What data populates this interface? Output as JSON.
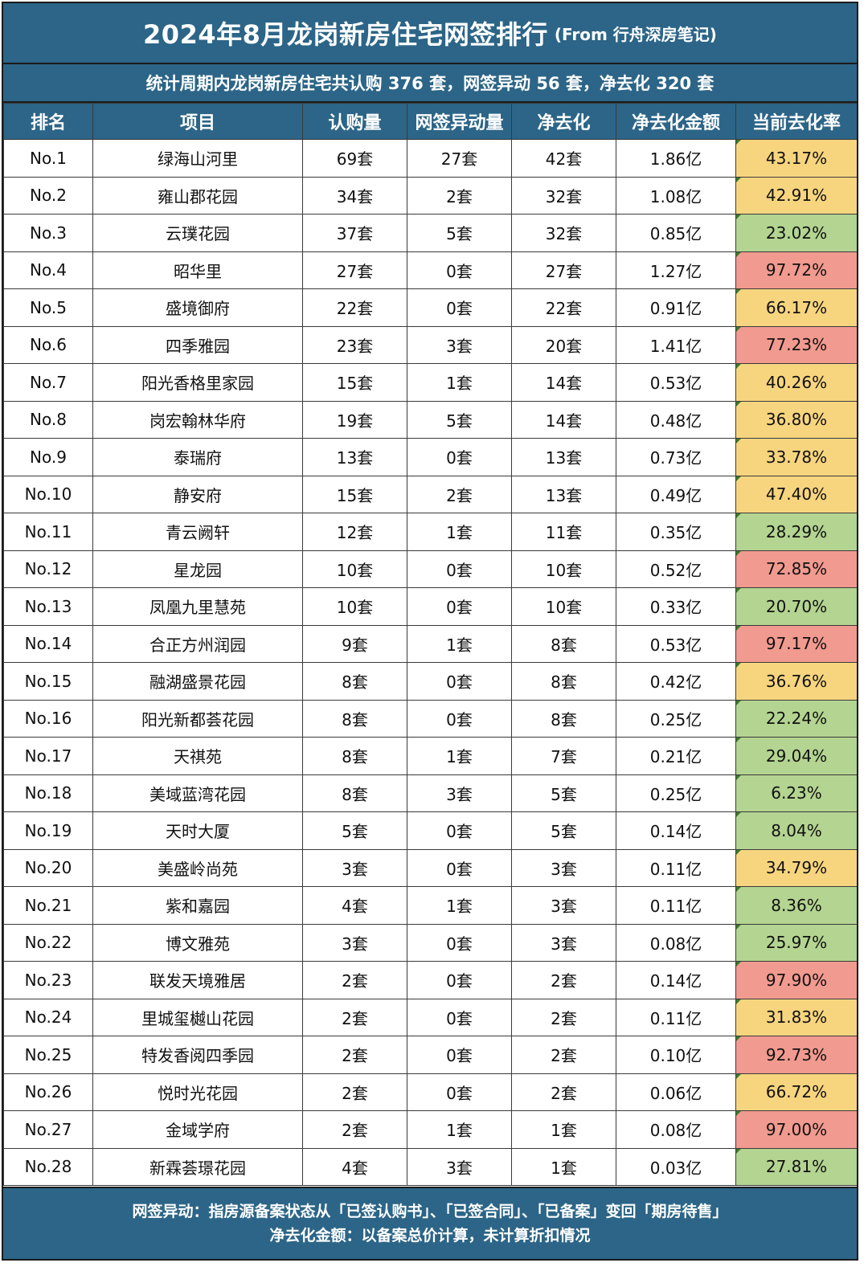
{
  "title": {
    "main": "2024年8月龙岗新房住宅网签排行",
    "source": "(From 行舟深房笔记)"
  },
  "summary": "统计周期内龙岗新房住宅共认购 376 套，网签异动 56 套，净去化 320 套",
  "headers": [
    "排名",
    "项目",
    "认购量",
    "网签异动量",
    "净去化",
    "净去化金额",
    "当前去化率"
  ],
  "colors": {
    "header_bg": "#2c6587",
    "rate_high": "#f19a8f",
    "rate_mid": "#f7d57f",
    "rate_low": "#b4d491"
  },
  "rows": [
    {
      "rank": "No.1",
      "project": "绿海山河里",
      "subscribed": "69套",
      "change": "27套",
      "net": "42套",
      "amount": "1.86亿",
      "rate": "43.17%",
      "level": "mid"
    },
    {
      "rank": "No.2",
      "project": "雍山郡花园",
      "subscribed": "34套",
      "change": "2套",
      "net": "32套",
      "amount": "1.08亿",
      "rate": "42.91%",
      "level": "mid"
    },
    {
      "rank": "No.3",
      "project": "云璞花园",
      "subscribed": "37套",
      "change": "5套",
      "net": "32套",
      "amount": "0.85亿",
      "rate": "23.02%",
      "level": "low"
    },
    {
      "rank": "No.4",
      "project": "昭华里",
      "subscribed": "27套",
      "change": "0套",
      "net": "27套",
      "amount": "1.27亿",
      "rate": "97.72%",
      "level": "high"
    },
    {
      "rank": "No.5",
      "project": "盛境御府",
      "subscribed": "22套",
      "change": "0套",
      "net": "22套",
      "amount": "0.91亿",
      "rate": "66.17%",
      "level": "mid"
    },
    {
      "rank": "No.6",
      "project": "四季雅园",
      "subscribed": "23套",
      "change": "3套",
      "net": "20套",
      "amount": "1.41亿",
      "rate": "77.23%",
      "level": "high"
    },
    {
      "rank": "No.7",
      "project": "阳光香格里家园",
      "subscribed": "15套",
      "change": "1套",
      "net": "14套",
      "amount": "0.53亿",
      "rate": "40.26%",
      "level": "mid"
    },
    {
      "rank": "No.8",
      "project": "岗宏翰林华府",
      "subscribed": "19套",
      "change": "5套",
      "net": "14套",
      "amount": "0.48亿",
      "rate": "36.80%",
      "level": "mid"
    },
    {
      "rank": "No.9",
      "project": "泰瑞府",
      "subscribed": "13套",
      "change": "0套",
      "net": "13套",
      "amount": "0.73亿",
      "rate": "33.78%",
      "level": "mid"
    },
    {
      "rank": "No.10",
      "project": "静安府",
      "subscribed": "15套",
      "change": "2套",
      "net": "13套",
      "amount": "0.49亿",
      "rate": "47.40%",
      "level": "mid"
    },
    {
      "rank": "No.11",
      "project": "青云阙轩",
      "subscribed": "12套",
      "change": "1套",
      "net": "11套",
      "amount": "0.35亿",
      "rate": "28.29%",
      "level": "low"
    },
    {
      "rank": "No.12",
      "project": "星龙园",
      "subscribed": "10套",
      "change": "0套",
      "net": "10套",
      "amount": "0.52亿",
      "rate": "72.85%",
      "level": "high"
    },
    {
      "rank": "No.13",
      "project": "凤凰九里慧苑",
      "subscribed": "10套",
      "change": "0套",
      "net": "10套",
      "amount": "0.33亿",
      "rate": "20.70%",
      "level": "low"
    },
    {
      "rank": "No.14",
      "project": "合正方州润园",
      "subscribed": "9套",
      "change": "1套",
      "net": "8套",
      "amount": "0.53亿",
      "rate": "97.17%",
      "level": "high"
    },
    {
      "rank": "No.15",
      "project": "融湖盛景花园",
      "subscribed": "8套",
      "change": "0套",
      "net": "8套",
      "amount": "0.42亿",
      "rate": "36.76%",
      "level": "mid"
    },
    {
      "rank": "No.16",
      "project": "阳光新都荟花园",
      "subscribed": "8套",
      "change": "0套",
      "net": "8套",
      "amount": "0.25亿",
      "rate": "22.24%",
      "level": "low"
    },
    {
      "rank": "No.17",
      "project": "天祺苑",
      "subscribed": "8套",
      "change": "1套",
      "net": "7套",
      "amount": "0.21亿",
      "rate": "29.04%",
      "level": "low"
    },
    {
      "rank": "No.18",
      "project": "美域蓝湾花园",
      "subscribed": "8套",
      "change": "3套",
      "net": "5套",
      "amount": "0.25亿",
      "rate": "6.23%",
      "level": "low"
    },
    {
      "rank": "No.19",
      "project": "天时大厦",
      "subscribed": "5套",
      "change": "0套",
      "net": "5套",
      "amount": "0.14亿",
      "rate": "8.04%",
      "level": "low"
    },
    {
      "rank": "No.20",
      "project": "美盛岭尚苑",
      "subscribed": "3套",
      "change": "0套",
      "net": "3套",
      "amount": "0.11亿",
      "rate": "34.79%",
      "level": "mid"
    },
    {
      "rank": "No.21",
      "project": "紫和嘉园",
      "subscribed": "4套",
      "change": "1套",
      "net": "3套",
      "amount": "0.11亿",
      "rate": "8.36%",
      "level": "low"
    },
    {
      "rank": "No.22",
      "project": "博文雅苑",
      "subscribed": "3套",
      "change": "0套",
      "net": "3套",
      "amount": "0.08亿",
      "rate": "25.97%",
      "level": "low"
    },
    {
      "rank": "No.23",
      "project": "联发天境雅居",
      "subscribed": "2套",
      "change": "0套",
      "net": "2套",
      "amount": "0.14亿",
      "rate": "97.90%",
      "level": "high"
    },
    {
      "rank": "No.24",
      "project": "里城玺樾山花园",
      "subscribed": "2套",
      "change": "0套",
      "net": "2套",
      "amount": "0.11亿",
      "rate": "31.83%",
      "level": "mid"
    },
    {
      "rank": "No.25",
      "project": "特发香阅四季园",
      "subscribed": "2套",
      "change": "0套",
      "net": "2套",
      "amount": "0.10亿",
      "rate": "92.73%",
      "level": "high"
    },
    {
      "rank": "No.26",
      "project": "悦时光花园",
      "subscribed": "2套",
      "change": "0套",
      "net": "2套",
      "amount": "0.06亿",
      "rate": "66.72%",
      "level": "mid"
    },
    {
      "rank": "No.27",
      "project": "金域学府",
      "subscribed": "2套",
      "change": "1套",
      "net": "1套",
      "amount": "0.08亿",
      "rate": "97.00%",
      "level": "high"
    },
    {
      "rank": "No.28",
      "project": "新霖荟璟花园",
      "subscribed": "4套",
      "change": "3套",
      "net": "1套",
      "amount": "0.03亿",
      "rate": "27.81%",
      "level": "low"
    }
  ],
  "footer": {
    "line1": "网签异动：指房源备案状态从「已签认购书」、「已签合同」、「已备案」变回「期房待售」",
    "line2": "净去化金额：以备案总价计算，未计算折扣情况"
  }
}
